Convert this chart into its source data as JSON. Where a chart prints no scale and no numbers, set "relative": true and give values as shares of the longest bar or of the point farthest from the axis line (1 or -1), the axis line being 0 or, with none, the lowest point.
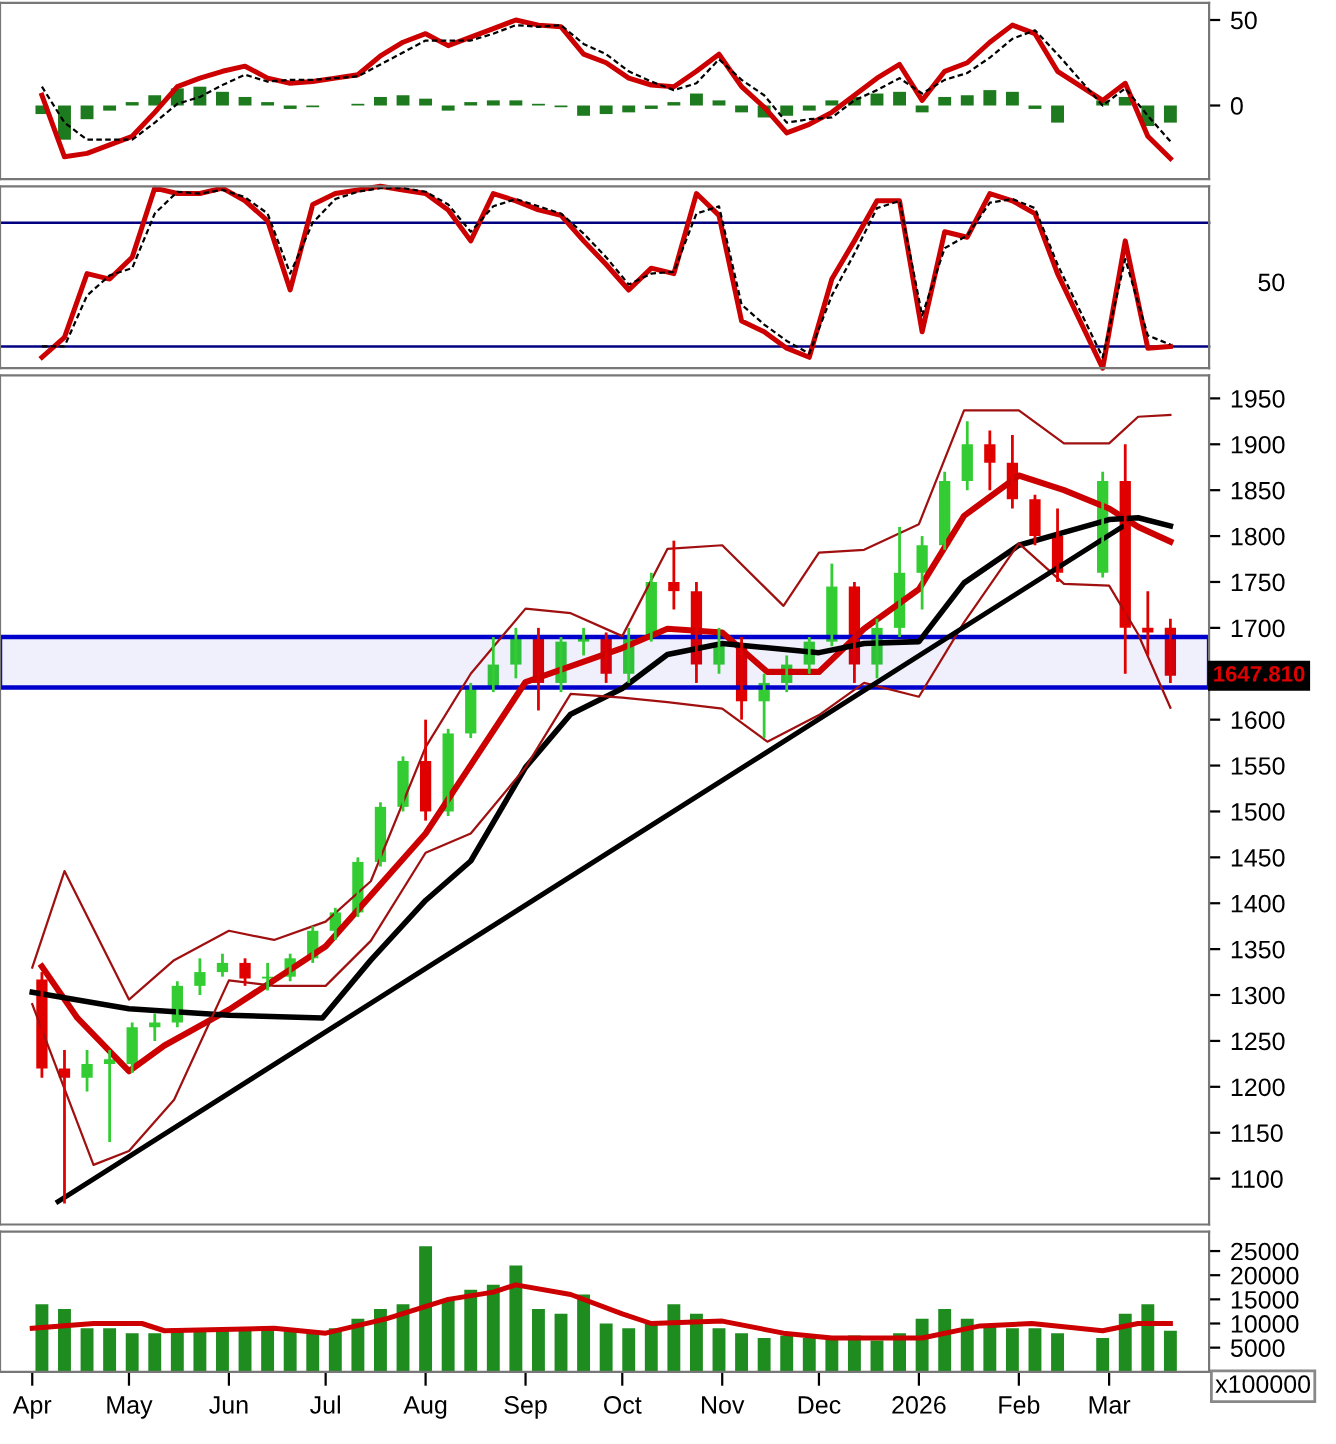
{
  "chart_data": [
    {
      "type": "line",
      "x": [
        "2025-04-04",
        "2025-04-11",
        "2025-04-18",
        "2025-04-25",
        "2025-05-02",
        "2025-05-09",
        "2025-05-16",
        "2025-05-23",
        "2025-05-30",
        "2025-06-06",
        "2025-06-13",
        "2025-06-20",
        "2025-06-27",
        "2025-07-04",
        "2025-07-11",
        "2025-07-18",
        "2025-07-25",
        "2025-08-01",
        "2025-08-08",
        "2025-08-15",
        "2025-08-22",
        "2025-08-29",
        "2025-09-05",
        "2025-09-12",
        "2025-09-19",
        "2025-09-26",
        "2025-10-03",
        "2025-10-10",
        "2025-10-17",
        "2025-10-24",
        "2025-10-31",
        "2025-11-07",
        "2025-11-14",
        "2025-11-21",
        "2025-11-28",
        "2025-12-05",
        "2025-12-12",
        "2025-12-19",
        "2025-12-26",
        "2026-01-02",
        "2026-01-09",
        "2026-01-16",
        "2026-01-23",
        "2026-01-30",
        "2026-02-06",
        "2026-02-13",
        "2026-02-27",
        "2026-03-06",
        "2026-03-13",
        "2026-03-20"
      ],
      "series": [
        {
          "type": "bar",
          "color": "#1e7a1e",
          "values": [
            -5,
            -20,
            -8,
            -3,
            2,
            6,
            10,
            11,
            8,
            5,
            2,
            -2,
            -1,
            0,
            1,
            5,
            6,
            4,
            -3,
            2,
            3,
            3,
            1,
            -1,
            -6,
            -5,
            -4,
            -2,
            2,
            7,
            3,
            -4,
            -7,
            -6,
            -3,
            3,
            5,
            7,
            8,
            -4,
            5,
            6,
            9,
            8,
            -2,
            -10,
            3,
            5,
            -12,
            -10
          ]
        },
        {
          "color": "#cc0000",
          "values": [
            6,
            -30,
            -28,
            -23,
            -18,
            -4,
            11,
            16,
            20,
            23,
            16,
            13,
            14,
            16,
            18,
            29,
            37,
            42,
            35,
            40,
            45,
            50,
            47,
            46,
            30,
            25,
            16,
            12,
            11,
            20,
            30,
            11,
            -1,
            -16,
            -11,
            -4,
            6,
            16,
            24,
            3,
            20,
            25,
            37,
            47,
            42,
            20,
            3,
            13,
            -18,
            -31
          ]
        },
        {
          "color": "#000000",
          "line_style": "dashed",
          "values": [
            11,
            -10,
            -20,
            -20,
            -20,
            -10,
            1,
            5,
            12,
            18,
            14,
            15,
            15,
            16,
            17,
            24,
            31,
            38,
            38,
            38,
            42,
            47,
            46,
            47,
            36,
            30,
            20,
            14,
            9,
            13,
            27,
            15,
            6,
            -10,
            -8,
            -7,
            3,
            9,
            16,
            7,
            15,
            19,
            28,
            39,
            44,
            30,
            0,
            10,
            -6,
            -21
          ]
        }
      ],
      "xlim": [
        "2025-03-22",
        "2026-04-01"
      ],
      "ylim": [
        -43,
        60
      ],
      "yticks": [
        0,
        50
      ],
      "tick_labels": "y"
    },
    {
      "type": "line",
      "x": [
        "2025-04-04",
        "2025-04-11",
        "2025-04-18",
        "2025-04-25",
        "2025-05-02",
        "2025-05-09",
        "2025-05-16",
        "2025-05-23",
        "2025-05-30",
        "2025-06-06",
        "2025-06-13",
        "2025-06-20",
        "2025-06-27",
        "2025-07-04",
        "2025-07-11",
        "2025-07-18",
        "2025-07-25",
        "2025-08-01",
        "2025-08-08",
        "2025-08-15",
        "2025-08-22",
        "2025-08-29",
        "2025-09-05",
        "2025-09-12",
        "2025-09-19",
        "2025-09-26",
        "2025-10-03",
        "2025-10-10",
        "2025-10-17",
        "2025-10-24",
        "2025-10-31",
        "2025-11-07",
        "2025-11-14",
        "2025-11-21",
        "2025-11-28",
        "2025-12-05",
        "2025-12-12",
        "2025-12-19",
        "2025-12-26",
        "2026-01-02",
        "2026-01-09",
        "2026-01-16",
        "2026-01-23",
        "2026-01-30",
        "2026-02-06",
        "2026-02-13",
        "2026-02-27",
        "2026-03-06",
        "2026-03-13",
        "2026-03-20"
      ],
      "series": [
        {
          "color": "#cc0000",
          "values": [
            0.06,
            0.17,
            0.52,
            0.49,
            0.61,
            0.99,
            0.96,
            0.96,
            0.99,
            0.92,
            0.81,
            0.43,
            0.9,
            0.96,
            0.98,
            1.0,
            0.98,
            0.96,
            0.87,
            0.7,
            0.96,
            0.92,
            0.87,
            0.84,
            0.7,
            0.57,
            0.43,
            0.55,
            0.52,
            0.96,
            0.84,
            0.26,
            0.2,
            0.11,
            0.06,
            0.49,
            0.7,
            0.92,
            0.92,
            0.2,
            0.75,
            0.72,
            0.96,
            0.92,
            0.85,
            0.52,
            0,
            0.7,
            0.11,
            0.12
          ]
        },
        {
          "color": "#000000",
          "line_style": "dashed",
          "values": [
            0.12,
            0.12,
            0.4,
            0.51,
            0.55,
            0.85,
            0.97,
            0.96,
            0.98,
            0.94,
            0.85,
            0.52,
            0.8,
            0.93,
            0.97,
            0.99,
            0.99,
            0.97,
            0.9,
            0.75,
            0.89,
            0.93,
            0.89,
            0.85,
            0.74,
            0.61,
            0.46,
            0.52,
            0.53,
            0.85,
            0.89,
            0.35,
            0.24,
            0.15,
            0.08,
            0.4,
            0.63,
            0.88,
            0.92,
            0.29,
            0.66,
            0.73,
            0.91,
            0.93,
            0.88,
            0.57,
            0.06,
            0.6,
            0.18,
            0.13
          ]
        }
      ],
      "relative": true,
      "ref_lines": [
        {
          "axis": "y",
          "value": 0.8,
          "color": "#000080"
        },
        {
          "axis": "y",
          "value": 0.12,
          "color": "#000080"
        }
      ],
      "annotations": [
        "50"
      ],
      "xlim": [
        "2025-03-22",
        "2026-04-01"
      ],
      "tick_labels": false
    },
    {
      "type": "candlestick",
      "x": [
        "2025-04-04",
        "2025-04-11",
        "2025-04-18",
        "2025-04-25",
        "2025-05-02",
        "2025-05-09",
        "2025-05-16",
        "2025-05-23",
        "2025-05-30",
        "2025-06-06",
        "2025-06-13",
        "2025-06-20",
        "2025-06-27",
        "2025-07-04",
        "2025-07-11",
        "2025-07-18",
        "2025-07-25",
        "2025-08-01",
        "2025-08-08",
        "2025-08-15",
        "2025-08-22",
        "2025-08-29",
        "2025-09-05",
        "2025-09-12",
        "2025-09-19",
        "2025-09-26",
        "2025-10-03",
        "2025-10-10",
        "2025-10-17",
        "2025-10-24",
        "2025-10-31",
        "2025-11-07",
        "2025-11-14",
        "2025-11-21",
        "2025-11-28",
        "2025-12-05",
        "2025-12-12",
        "2025-12-19",
        "2025-12-26",
        "2026-01-02",
        "2026-01-09",
        "2026-01-16",
        "2026-01-23",
        "2026-01-30",
        "2026-02-06",
        "2026-02-13",
        "2026-02-27",
        "2026-03-06",
        "2026-03-13",
        "2026-03-20"
      ],
      "ohlc": [
        [
          1317,
          1325,
          1210,
          1220
        ],
        [
          1220,
          1240,
          1073,
          1210
        ],
        [
          1210,
          1240,
          1195,
          1225
        ],
        [
          1225,
          1240,
          1140,
          1230
        ],
        [
          1225,
          1270,
          1215,
          1265
        ],
        [
          1265,
          1280,
          1250,
          1270
        ],
        [
          1270,
          1315,
          1265,
          1310
        ],
        [
          1310,
          1340,
          1300,
          1325
        ],
        [
          1325,
          1345,
          1320,
          1335
        ],
        [
          1335,
          1340,
          1310,
          1318
        ],
        [
          1318,
          1335,
          1305,
          1320
        ],
        [
          1320,
          1345,
          1315,
          1340
        ],
        [
          1340,
          1375,
          1335,
          1370
        ],
        [
          1370,
          1395,
          1360,
          1390
        ],
        [
          1390,
          1450,
          1385,
          1445
        ],
        [
          1445,
          1510,
          1440,
          1505
        ],
        [
          1505,
          1560,
          1500,
          1555
        ],
        [
          1555,
          1600,
          1490,
          1500
        ],
        [
          1500,
          1590,
          1495,
          1585
        ],
        [
          1585,
          1640,
          1580,
          1635
        ],
        [
          1635,
          1690,
          1630,
          1660
        ],
        [
          1660,
          1700,
          1645,
          1690
        ],
        [
          1690,
          1700,
          1610,
          1640
        ],
        [
          1640,
          1690,
          1630,
          1685
        ],
        [
          1685,
          1700,
          1670,
          1690
        ],
        [
          1690,
          1695,
          1640,
          1650
        ],
        [
          1650,
          1700,
          1640,
          1690
        ],
        [
          1690,
          1760,
          1685,
          1750
        ],
        [
          1750,
          1795,
          1720,
          1740
        ],
        [
          1740,
          1750,
          1640,
          1660
        ],
        [
          1660,
          1700,
          1650,
          1680
        ],
        [
          1680,
          1690,
          1600,
          1620
        ],
        [
          1620,
          1650,
          1580,
          1640
        ],
        [
          1640,
          1670,
          1630,
          1660
        ],
        [
          1660,
          1690,
          1650,
          1685
        ],
        [
          1685,
          1770,
          1680,
          1745
        ],
        [
          1745,
          1750,
          1640,
          1660
        ],
        [
          1660,
          1710,
          1645,
          1700
        ],
        [
          1700,
          1810,
          1690,
          1760
        ],
        [
          1760,
          1800,
          1720,
          1790
        ],
        [
          1790,
          1870,
          1785,
          1860
        ],
        [
          1860,
          1925,
          1850,
          1900
        ],
        [
          1900,
          1915,
          1850,
          1880
        ],
        [
          1880,
          1910,
          1830,
          1840
        ],
        [
          1840,
          1845,
          1790,
          1800
        ],
        [
          1800,
          1830,
          1750,
          1760
        ],
        [
          1760,
          1870,
          1755,
          1860
        ],
        [
          1860,
          1900,
          1650,
          1700
        ],
        [
          1700,
          1740,
          1670,
          1695
        ],
        [
          1700,
          1710,
          1640,
          1647.81
        ]
      ],
      "colors": [
        "#e00000",
        "#e00000",
        "#33cc33",
        "#33cc33",
        "#33cc33",
        "#33cc33",
        "#33cc33",
        "#33cc33",
        "#33cc33",
        "#e00000",
        "#33cc33",
        "#33cc33",
        "#33cc33",
        "#33cc33",
        "#33cc33",
        "#33cc33",
        "#33cc33",
        "#e00000",
        "#33cc33",
        "#33cc33",
        "#33cc33",
        "#33cc33",
        "#e00000",
        "#33cc33",
        "#33cc33",
        "#e00000",
        "#33cc33",
        "#33cc33",
        "#e00000",
        "#e00000",
        "#33cc33",
        "#e00000",
        "#33cc33",
        "#33cc33",
        "#33cc33",
        "#33cc33",
        "#e00000",
        "#33cc33",
        "#33cc33",
        "#33cc33",
        "#33cc33",
        "#33cc33",
        "#e00000",
        "#e00000",
        "#e00000",
        "#e00000",
        "#33cc33",
        "#e00000",
        "#e00000",
        "#e00000"
      ],
      "series": [
        {
          "type": "line",
          "color": "#cc0000",
          "x": [
            "2025-04-04",
            "2025-04-15",
            "2025-05-01",
            "2025-05-12",
            "2025-06-01",
            "2025-07-01",
            "2025-08-01",
            "2025-09-01",
            "2025-10-01",
            "2025-10-15",
            "2025-11-01",
            "2025-11-15",
            "2025-12-01",
            "2025-12-15",
            "2026-01-01",
            "2026-01-15",
            "2026-02-01",
            "2026-02-15",
            "2026-03-01",
            "2026-03-10",
            "2026-03-20"
          ],
          "values": [
            1331,
            1275,
            1217,
            1245,
            1284,
            1353,
            1476,
            1641,
            1678,
            1699,
            1695,
            1652,
            1652,
            1699,
            1742,
            1822,
            1866,
            1850,
            1830,
            1810,
            1794
          ]
        },
        {
          "type": "line",
          "color": "#000000",
          "x": [
            "2025-04-01",
            "2025-05-01",
            "2025-06-01",
            "2025-06-30",
            "2025-07-15",
            "2025-08-01",
            "2025-08-15",
            "2025-09-01",
            "2025-09-15",
            "2025-10-01",
            "2025-10-15",
            "2025-11-01",
            "2025-12-01",
            "2025-12-15",
            "2026-01-01",
            "2026-01-15",
            "2026-02-01",
            "2026-02-15",
            "2026-03-01",
            "2026-03-10",
            "2026-03-20"
          ],
          "values": [
            1303,
            1285,
            1278,
            1275,
            1338,
            1403,
            1446,
            1548,
            1606,
            1634,
            1671,
            1683,
            1673,
            1683,
            1685,
            1749,
            1790,
            1804,
            1818,
            1820,
            1811
          ]
        },
        {
          "type": "line",
          "color": "#a01010",
          "x": [
            "2025-04-01",
            "2025-04-11",
            "2025-05-01",
            "2025-05-15",
            "2025-06-01",
            "2025-06-15",
            "2025-07-01",
            "2025-07-15",
            "2025-08-01",
            "2025-08-15",
            "2025-09-01",
            "2025-09-15",
            "2025-10-01",
            "2025-10-15",
            "2025-11-01",
            "2025-11-20",
            "2025-12-01",
            "2025-12-15",
            "2026-01-01",
            "2026-01-15",
            "2026-02-01",
            "2026-02-15",
            "2026-03-01",
            "2026-03-10",
            "2026-03-20"
          ],
          "values": [
            1330,
            1435,
            1295,
            1338,
            1370,
            1360,
            1380,
            1424,
            1570,
            1650,
            1721,
            1716,
            1691,
            1786,
            1790,
            1724,
            1782,
            1785,
            1813,
            1937,
            1937,
            1901,
            1901,
            1930,
            1932
          ]
        },
        {
          "type": "line",
          "color": "#a01010",
          "x": [
            "2025-04-01",
            "2025-04-20",
            "2025-05-01",
            "2025-05-15",
            "2025-06-01",
            "2025-06-15",
            "2025-07-01",
            "2025-07-15",
            "2025-08-01",
            "2025-08-15",
            "2025-09-01",
            "2025-09-15",
            "2025-10-01",
            "2025-10-15",
            "2025-11-01",
            "2025-11-15",
            "2025-12-01",
            "2025-12-15",
            "2026-01-01",
            "2026-01-15",
            "2026-02-01",
            "2026-02-15",
            "2026-03-01",
            "2026-03-10",
            "2026-03-20"
          ],
          "values": [
            1290,
            1115,
            1130,
            1186,
            1316,
            1310,
            1310,
            1359,
            1455,
            1476,
            1548,
            1628,
            1624,
            1619,
            1612,
            1576,
            1605,
            1640,
            1625,
            1706,
            1792,
            1748,
            1746,
            1693,
            1613
          ]
        },
        {
          "type": "line",
          "color": "#000000",
          "x": [
            "2025-04-09",
            "2026-03-05"
          ],
          "values": [
            1075,
            1810
          ]
        }
      ],
      "bands": [
        {
          "axis": "y",
          "from": 1635,
          "to": 1690,
          "color": "#0000cc"
        }
      ],
      "annotations": [
        {
          "text": "1647.810",
          "x": "2026-03-20",
          "y": 1647.81
        }
      ],
      "xlim": [
        "2025-03-22",
        "2026-04-01"
      ],
      "ylim": [
        1050,
        1975
      ],
      "yticks": [
        1100,
        1150,
        1200,
        1250,
        1300,
        1350,
        1400,
        1450,
        1500,
        1550,
        1600,
        1700,
        1750,
        1800,
        1850,
        1900,
        1950
      ],
      "tick_labels": "y"
    },
    {
      "type": "bar",
      "x": [
        "2025-04-04",
        "2025-04-11",
        "2025-04-18",
        "2025-04-25",
        "2025-05-02",
        "2025-05-09",
        "2025-05-16",
        "2025-05-23",
        "2025-05-30",
        "2025-06-06",
        "2025-06-13",
        "2025-06-20",
        "2025-06-27",
        "2025-07-04",
        "2025-07-11",
        "2025-07-18",
        "2025-07-25",
        "2025-08-01",
        "2025-08-08",
        "2025-08-15",
        "2025-08-22",
        "2025-08-29",
        "2025-09-05",
        "2025-09-12",
        "2025-09-19",
        "2025-09-26",
        "2025-10-03",
        "2025-10-10",
        "2025-10-17",
        "2025-10-24",
        "2025-10-31",
        "2025-11-07",
        "2025-11-14",
        "2025-11-21",
        "2025-11-28",
        "2025-12-05",
        "2025-12-12",
        "2025-12-19",
        "2025-12-26",
        "2026-01-02",
        "2026-01-09",
        "2026-01-16",
        "2026-01-23",
        "2026-01-30",
        "2026-02-06",
        "2026-02-13",
        "2026-02-27",
        "2026-03-06",
        "2026-03-13",
        "2026-03-20"
      ],
      "series": [
        {
          "color": "#1e8c1e",
          "values": [
            14000,
            13000,
            9000,
            9000,
            8000,
            8000,
            9000,
            9000,
            9000,
            8500,
            9000,
            8500,
            8000,
            9000,
            11000,
            13000,
            14000,
            26000,
            15000,
            17000,
            18000,
            22000,
            13000,
            12000,
            16000,
            10000,
            9000,
            10000,
            14000,
            12000,
            9000,
            8000,
            7000,
            7500,
            7000,
            7000,
            7500,
            6500,
            8000,
            11000,
            13000,
            11000,
            9500,
            9000,
            9000,
            8000,
            7000,
            12000,
            14000,
            8500
          ]
        },
        {
          "type": "line",
          "color": "#cc0000",
          "x": [
            "2025-04-01",
            "2025-04-20",
            "2025-05-05",
            "2025-05-12",
            "2025-06-15",
            "2025-07-01",
            "2025-07-20",
            "2025-08-08",
            "2025-08-22",
            "2025-08-29",
            "2025-09-15",
            "2025-10-01",
            "2025-10-10",
            "2025-11-01",
            "2025-11-20",
            "2025-12-05",
            "2026-01-02",
            "2026-01-20",
            "2026-02-05",
            "2026-02-27",
            "2026-03-10",
            "2026-03-20"
          ],
          "values": [
            9000,
            10000,
            10000,
            8500,
            9000,
            8000,
            11000,
            15000,
            16500,
            18000,
            16000,
            12000,
            10000,
            10500,
            8000,
            7000,
            7000,
            9500,
            10000,
            8500,
            10000,
            10000
          ]
        }
      ],
      "annotations": [
        "x100000"
      ],
      "xlim": [
        "2025-03-22",
        "2026-04-01"
      ],
      "ylim": [
        0,
        29000
      ],
      "yticks": [
        5000,
        10000,
        15000,
        20000,
        25000
      ],
      "xticks": [
        {
          "value": "2025-04-01",
          "label": "Apr"
        },
        {
          "value": "2025-05-01",
          "label": "May"
        },
        {
          "value": "2025-06-01",
          "label": "Jun"
        },
        {
          "value": "2025-07-01",
          "label": "Jul"
        },
        {
          "value": "2025-08-01",
          "label": "Aug"
        },
        {
          "value": "2025-09-01",
          "label": "Sep"
        },
        {
          "value": "2025-10-01",
          "label": "Oct"
        },
        {
          "value": "2025-11-01",
          "label": "Nov"
        },
        {
          "value": "2025-12-01",
          "label": "Dec"
        },
        {
          "value": "2026-01-01",
          "label": "2026"
        },
        {
          "value": "2026-02-01",
          "label": "Feb"
        },
        {
          "value": "2026-03-01",
          "label": "Mar"
        }
      ]
    }
  ]
}
